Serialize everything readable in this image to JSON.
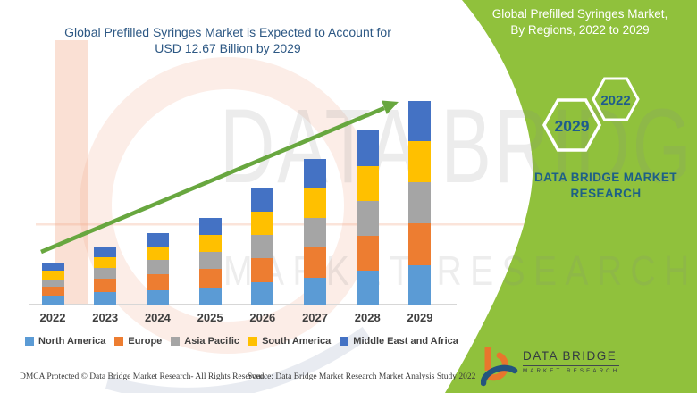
{
  "page": {
    "main_title_line1": "Global Prefilled Syringes Market is Expected to Account for",
    "main_title_line2": "USD 12.67 Billion by 2029",
    "banner_title_line1": "Global Prefilled Syringes Market,",
    "banner_title_line2": "By Regions, 2022 to 2029",
    "hexagons": {
      "front": {
        "label": "2029"
      },
      "back": {
        "label": "2022"
      }
    },
    "brand_line1": "DATA BRIDGE MARKET",
    "brand_line2": "RESEARCH",
    "watermark": {
      "row1": "DATA BRIDGE",
      "row2": "MARKET RESEARCH"
    },
    "logo": {
      "wordmark": "DATA BRIDGE",
      "subtext": "MARKET RESEARCH"
    },
    "footer": {
      "dmca": "DMCA Protected © Data Bridge Market Research- All Rights Reserved.",
      "source": "Source: Data Bridge Market Research Market Analysis Study 2022"
    }
  },
  "colors": {
    "green": "#90C13C",
    "arrow_green": "#68A73F",
    "title_blue": "#2D5884",
    "brand_teal": "#1D6086",
    "hexagon_year_blue": "#1E5C8C",
    "axis_gray": "#D7D7D7",
    "label_gray": "#3F3F3F",
    "logo_orange": "#E8762D",
    "logo_navy": "#24557E"
  },
  "chart_data": {
    "type": "bar",
    "stacked": true,
    "title": "Global Prefilled Syringes Market is Expected to Account for USD 12.67 Billion by 2029",
    "unit": "USD Billion",
    "categories": [
      "2022",
      "2023",
      "2024",
      "2025",
      "2026",
      "2027",
      "2028",
      "2029"
    ],
    "series": [
      {
        "name": "North America",
        "color": "#5B9BD5",
        "values": [
          0.54,
          0.78,
          0.87,
          1.06,
          1.39,
          1.67,
          2.1,
          2.47
        ]
      },
      {
        "name": "Europe",
        "color": "#ED7D31",
        "values": [
          0.56,
          0.83,
          1.04,
          1.17,
          1.52,
          1.95,
          2.17,
          2.6
        ]
      },
      {
        "name": "Asia Pacific",
        "color": "#A5A5A5",
        "values": [
          0.48,
          0.65,
          0.87,
          1.02,
          1.41,
          1.76,
          2.17,
          2.54
        ]
      },
      {
        "name": "South America",
        "color": "#FFC000",
        "values": [
          0.56,
          0.67,
          0.83,
          1.08,
          1.46,
          1.85,
          2.19,
          2.54
        ]
      },
      {
        "name": "Middle East and Africa",
        "color": "#4472C4",
        "values": [
          0.5,
          0.65,
          0.83,
          1.06,
          1.5,
          1.8,
          2.19,
          2.52
        ]
      }
    ],
    "totals_usd_billion": [
      2.64,
      3.58,
      4.44,
      5.39,
      7.28,
      9.03,
      10.82,
      12.67
    ],
    "highlight_value": "USD 12.67 Billion by 2029",
    "ylim": [
      0,
      13
    ],
    "grid": false,
    "axis_labels_shown": false,
    "legend_position": "bottom",
    "trend_arrow": true
  }
}
